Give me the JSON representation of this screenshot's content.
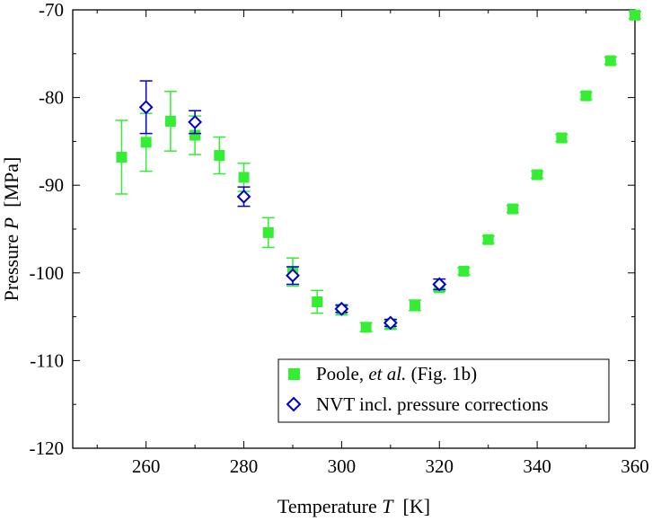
{
  "chart_data": {
    "type": "scatter",
    "xlabel": {
      "prefix": "Temperature ",
      "var": "T",
      "unit": "  [K]"
    },
    "ylabel": {
      "prefix": "Pressure ",
      "var": "P",
      "unit": "  [MPa]"
    },
    "xlim": [
      245,
      360
    ],
    "ylim": [
      -120,
      -70
    ],
    "x_ticks": [
      260,
      280,
      300,
      320,
      340,
      360
    ],
    "y_ticks": [
      -120,
      -110,
      -100,
      -90,
      -80,
      -70
    ],
    "x_tick_labels": [
      "260",
      "280",
      "300",
      "320",
      "340",
      "360"
    ],
    "y_tick_labels": [
      "-120",
      "-110",
      "-100",
      "-90",
      "-80",
      "-70"
    ],
    "legend_position": "bottom-right",
    "series": [
      {
        "name": "Poole, et al. (Fig. 1b)",
        "legend": {
          "before": "Poole, ",
          "italic": "et al.",
          "after": " (Fig. 1b)"
        },
        "marker": "filled-square",
        "color": "#33ee33",
        "x": [
          255,
          260,
          265,
          270,
          275,
          280,
          285,
          290,
          295,
          300,
          305,
          310,
          315,
          320,
          325,
          330,
          335,
          340,
          345,
          350,
          355,
          360
        ],
        "y": [
          -86.8,
          -85.1,
          -82.7,
          -84.3,
          -86.6,
          -89.1,
          -95.4,
          -99.9,
          -103.3,
          -104.2,
          -106.2,
          -105.9,
          -103.7,
          -101.7,
          -99.8,
          -96.2,
          -92.7,
          -88.8,
          -84.6,
          -79.8,
          -75.8,
          -70.6
        ],
        "err": [
          4.2,
          3.3,
          3.4,
          2.2,
          2.1,
          1.6,
          1.7,
          1.6,
          1.3,
          0.6,
          0.5,
          0.5,
          0.6,
          0.4,
          0.4,
          0.4,
          0.4,
          0.4,
          0.4,
          0.4,
          0.4,
          0.4
        ]
      },
      {
        "name": "NVT incl. pressure corrections",
        "legend": {
          "before": "NVT incl. pressure corrections",
          "italic": "",
          "after": ""
        },
        "marker": "open-diamond",
        "color": "#0000cc",
        "x": [
          260,
          270,
          280,
          290,
          300,
          310,
          320
        ],
        "y": [
          -81.1,
          -82.8,
          -91.3,
          -100.3,
          -104.1,
          -105.7,
          -101.3
        ],
        "err": [
          3.0,
          1.3,
          1.1,
          1.0,
          0.4,
          0.4,
          0.6
        ]
      }
    ]
  }
}
